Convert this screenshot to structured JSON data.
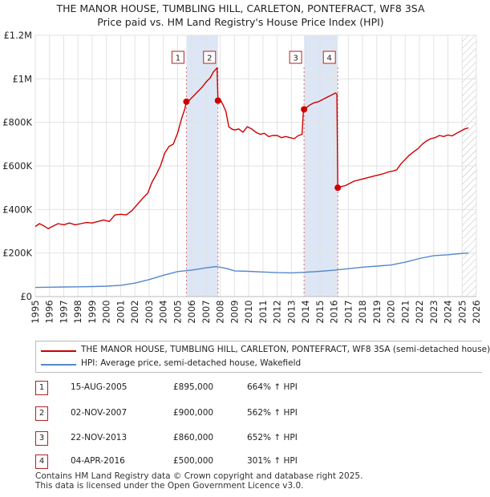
{
  "chart_data": {
    "type": "line",
    "title": "THE MANOR HOUSE, TUMBLING HILL, CARLETON, PONTEFRACT, WF8 3SA",
    "subtitle": "Price paid vs. HM Land Registry's House Price Index (HPI)",
    "xlabel": "",
    "ylabel": "",
    "xlim": [
      1995,
      2026
    ],
    "ylim": [
      0,
      1200000
    ],
    "x_ticks": [
      1995,
      1996,
      1997,
      1998,
      1999,
      2000,
      2001,
      2002,
      2003,
      2004,
      2005,
      2006,
      2007,
      2008,
      2009,
      2010,
      2011,
      2012,
      2013,
      2014,
      2015,
      2016,
      2017,
      2018,
      2019,
      2020,
      2021,
      2022,
      2023,
      2024,
      2025,
      2026
    ],
    "y_ticks": [
      {
        "value": 0,
        "label": "£0"
      },
      {
        "value": 200000,
        "label": "£200K"
      },
      {
        "value": 400000,
        "label": "£400K"
      },
      {
        "value": 600000,
        "label": "£600K"
      },
      {
        "value": 800000,
        "label": "£800K"
      },
      {
        "value": 1000000,
        "label": "£1M"
      },
      {
        "value": 1200000,
        "label": "£1.2M"
      }
    ],
    "grid": true,
    "series": [
      {
        "name": "THE MANOR HOUSE, TUMBLING HILL, CARLETON, PONTEFRACT, WF8 3SA (semi-detached house)",
        "color": "#cc0000",
        "points": [
          [
            1995.0,
            322000
          ],
          [
            1995.3,
            335000
          ],
          [
            1995.6,
            325000
          ],
          [
            1995.9,
            312000
          ],
          [
            1996.2,
            322000
          ],
          [
            1996.6,
            335000
          ],
          [
            1997.0,
            330000
          ],
          [
            1997.4,
            338000
          ],
          [
            1997.8,
            330000
          ],
          [
            1998.2,
            335000
          ],
          [
            1998.6,
            340000
          ],
          [
            1999.0,
            338000
          ],
          [
            1999.4,
            345000
          ],
          [
            1999.8,
            352000
          ],
          [
            2000.2,
            345000
          ],
          [
            2000.6,
            375000
          ],
          [
            2001.0,
            378000
          ],
          [
            2001.4,
            375000
          ],
          [
            2001.8,
            395000
          ],
          [
            2002.2,
            425000
          ],
          [
            2002.6,
            455000
          ],
          [
            2002.9,
            475000
          ],
          [
            2003.2,
            525000
          ],
          [
            2003.5,
            560000
          ],
          [
            2003.8,
            600000
          ],
          [
            2004.1,
            660000
          ],
          [
            2004.4,
            690000
          ],
          [
            2004.7,
            700000
          ],
          [
            2005.0,
            750000
          ],
          [
            2005.3,
            820000
          ],
          [
            2005.5,
            860000
          ],
          [
            2005.62,
            895000
          ],
          [
            2005.8,
            900000
          ],
          [
            2006.1,
            920000
          ],
          [
            2006.4,
            940000
          ],
          [
            2006.7,
            960000
          ],
          [
            2007.0,
            985000
          ],
          [
            2007.3,
            1005000
          ],
          [
            2007.5,
            1030000
          ],
          [
            2007.7,
            1045000
          ],
          [
            2007.78,
            1050000
          ],
          [
            2007.84,
            900000
          ],
          [
            2008.0,
            905000
          ],
          [
            2008.2,
            880000
          ],
          [
            2008.4,
            850000
          ],
          [
            2008.6,
            780000
          ],
          [
            2008.8,
            770000
          ],
          [
            2009.0,
            765000
          ],
          [
            2009.3,
            770000
          ],
          [
            2009.6,
            755000
          ],
          [
            2009.9,
            780000
          ],
          [
            2010.2,
            770000
          ],
          [
            2010.5,
            755000
          ],
          [
            2010.8,
            745000
          ],
          [
            2011.1,
            750000
          ],
          [
            2011.4,
            735000
          ],
          [
            2011.7,
            740000
          ],
          [
            2012.0,
            740000
          ],
          [
            2012.3,
            730000
          ],
          [
            2012.6,
            735000
          ],
          [
            2012.9,
            730000
          ],
          [
            2013.2,
            725000
          ],
          [
            2013.5,
            740000
          ],
          [
            2013.75,
            745000
          ],
          [
            2013.85,
            860000
          ],
          [
            2014.0,
            865000
          ],
          [
            2014.3,
            880000
          ],
          [
            2014.6,
            890000
          ],
          [
            2014.9,
            895000
          ],
          [
            2015.2,
            905000
          ],
          [
            2015.5,
            915000
          ],
          [
            2015.8,
            925000
          ],
          [
            2016.1,
            935000
          ],
          [
            2016.2,
            930000
          ],
          [
            2016.26,
            500000
          ],
          [
            2016.5,
            505000
          ],
          [
            2016.8,
            510000
          ],
          [
            2017.1,
            520000
          ],
          [
            2017.4,
            530000
          ],
          [
            2017.7,
            535000
          ],
          [
            2018.0,
            540000
          ],
          [
            2018.3,
            545000
          ],
          [
            2018.6,
            550000
          ],
          [
            2018.9,
            555000
          ],
          [
            2019.2,
            560000
          ],
          [
            2019.5,
            565000
          ],
          [
            2019.8,
            572000
          ],
          [
            2020.1,
            576000
          ],
          [
            2020.4,
            582000
          ],
          [
            2020.7,
            610000
          ],
          [
            2021.0,
            630000
          ],
          [
            2021.3,
            650000
          ],
          [
            2021.6,
            665000
          ],
          [
            2021.9,
            680000
          ],
          [
            2022.2,
            700000
          ],
          [
            2022.5,
            715000
          ],
          [
            2022.8,
            725000
          ],
          [
            2023.1,
            730000
          ],
          [
            2023.4,
            740000
          ],
          [
            2023.7,
            735000
          ],
          [
            2024.0,
            742000
          ],
          [
            2024.3,
            738000
          ],
          [
            2024.6,
            750000
          ],
          [
            2024.9,
            760000
          ],
          [
            2025.2,
            770000
          ],
          [
            2025.45,
            775000
          ]
        ]
      },
      {
        "name": "HPI: Average price, semi-detached house, Wakefield",
        "color": "#5588cc",
        "points": [
          [
            1995.0,
            42000
          ],
          [
            1996.0,
            43000
          ],
          [
            1997.0,
            44000
          ],
          [
            1998.0,
            45000
          ],
          [
            1999.0,
            46000
          ],
          [
            2000.0,
            48000
          ],
          [
            2001.0,
            52000
          ],
          [
            2002.0,
            62000
          ],
          [
            2003.0,
            78000
          ],
          [
            2004.0,
            98000
          ],
          [
            2005.0,
            115000
          ],
          [
            2006.0,
            122000
          ],
          [
            2007.0,
            132000
          ],
          [
            2007.75,
            138000
          ],
          [
            2008.5,
            128000
          ],
          [
            2009.0,
            118000
          ],
          [
            2010.0,
            116000
          ],
          [
            2011.0,
            113000
          ],
          [
            2012.0,
            110000
          ],
          [
            2013.0,
            109000
          ],
          [
            2014.0,
            112000
          ],
          [
            2015.0,
            116000
          ],
          [
            2016.0,
            121000
          ],
          [
            2017.0,
            128000
          ],
          [
            2018.0,
            135000
          ],
          [
            2019.0,
            140000
          ],
          [
            2020.0,
            145000
          ],
          [
            2021.0,
            158000
          ],
          [
            2022.0,
            175000
          ],
          [
            2023.0,
            188000
          ],
          [
            2024.0,
            192000
          ],
          [
            2025.0,
            198000
          ],
          [
            2025.45,
            200000
          ]
        ]
      }
    ],
    "events": [
      {
        "num": "1",
        "x": 2005.62,
        "price": 895000
      },
      {
        "num": "2",
        "x": 2007.84,
        "price": 900000
      },
      {
        "num": "3",
        "x": 2013.89,
        "price": 860000
      },
      {
        "num": "4",
        "x": 2016.26,
        "price": 500000
      }
    ],
    "shaded_spans": [
      [
        2005.62,
        2007.84
      ],
      [
        2013.89,
        2016.26
      ]
    ],
    "forecast_from": 2025.0
  },
  "legend": {
    "items": [
      {
        "label": "THE MANOR HOUSE, TUMBLING HILL, CARLETON, PONTEFRACT, WF8 3SA (semi-detached house)",
        "color": "#cc0000"
      },
      {
        "label": "HPI: Average price, semi-detached house, Wakefield",
        "color": "#5588cc"
      }
    ]
  },
  "transactions": [
    {
      "num": "1",
      "date": "15-AUG-2005",
      "price": "£895,000",
      "hpi": "664% ↑ HPI"
    },
    {
      "num": "2",
      "date": "02-NOV-2007",
      "price": "£900,000",
      "hpi": "562% ↑ HPI"
    },
    {
      "num": "3",
      "date": "22-NOV-2013",
      "price": "£860,000",
      "hpi": "652% ↑ HPI"
    },
    {
      "num": "4",
      "date": "04-APR-2016",
      "price": "£500,000",
      "hpi": "301% ↑ HPI"
    }
  ],
  "footer": {
    "line1": "Contains HM Land Registry data © Crown copyright and database right 2025.",
    "line2": "This data is licensed under the Open Government Licence v3.0."
  }
}
